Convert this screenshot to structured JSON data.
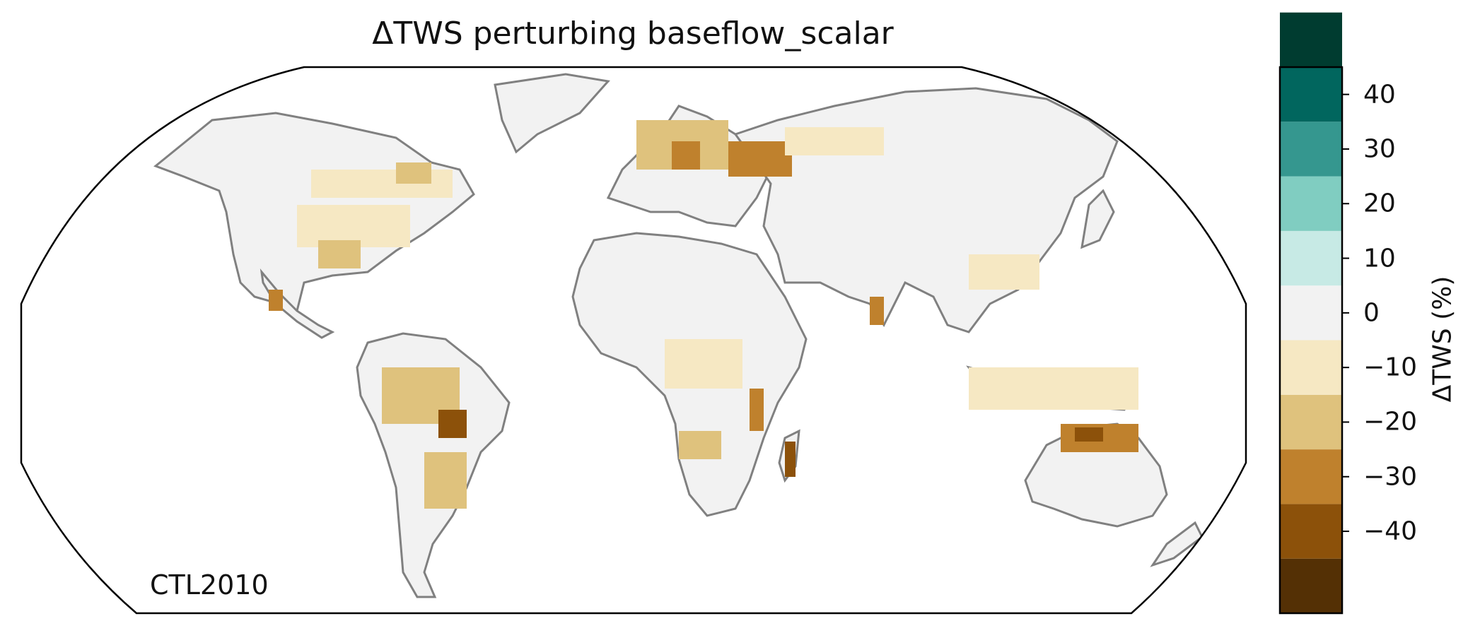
{
  "figure": {
    "title": "ΔTWS perturbing baseflow_scalar",
    "annotation": "CTL2010"
  },
  "colorbar": {
    "label": "ΔTWS (%)",
    "ticks": [
      "40",
      "30",
      "20",
      "10",
      "0",
      "−10",
      "−20",
      "−30",
      "−40"
    ],
    "bins": [
      {
        "range": [
          -45,
          -35
        ],
        "color": "#543005"
      },
      {
        "range": [
          -35,
          -25
        ],
        "color": "#8c510a"
      },
      {
        "range": [
          -25,
          -15
        ],
        "color": "#bf812d"
      },
      {
        "range": [
          -15,
          -5
        ],
        "color": "#dfc27d"
      },
      {
        "range": [
          -5,
          5
        ],
        "color": "#f6e8c3"
      },
      {
        "range": [
          5,
          15
        ],
        "color": "#f2f2f2"
      },
      {
        "range": [
          15,
          25
        ],
        "color": "#c7eae5"
      },
      {
        "range": [
          25,
          35
        ],
        "color": "#80cdc1"
      },
      {
        "range": [
          35,
          45
        ],
        "color": "#35978f"
      },
      {
        "range": [
          45,
          55
        ],
        "color": "#01665e"
      },
      {
        "range": [
          55,
          65
        ],
        "color": "#003c30"
      }
    ]
  },
  "map": {
    "projection": "Robinson",
    "land_color": "#f2f2f2",
    "coastline_color": "#808080",
    "border_color": "#c8c8c8"
  }
}
